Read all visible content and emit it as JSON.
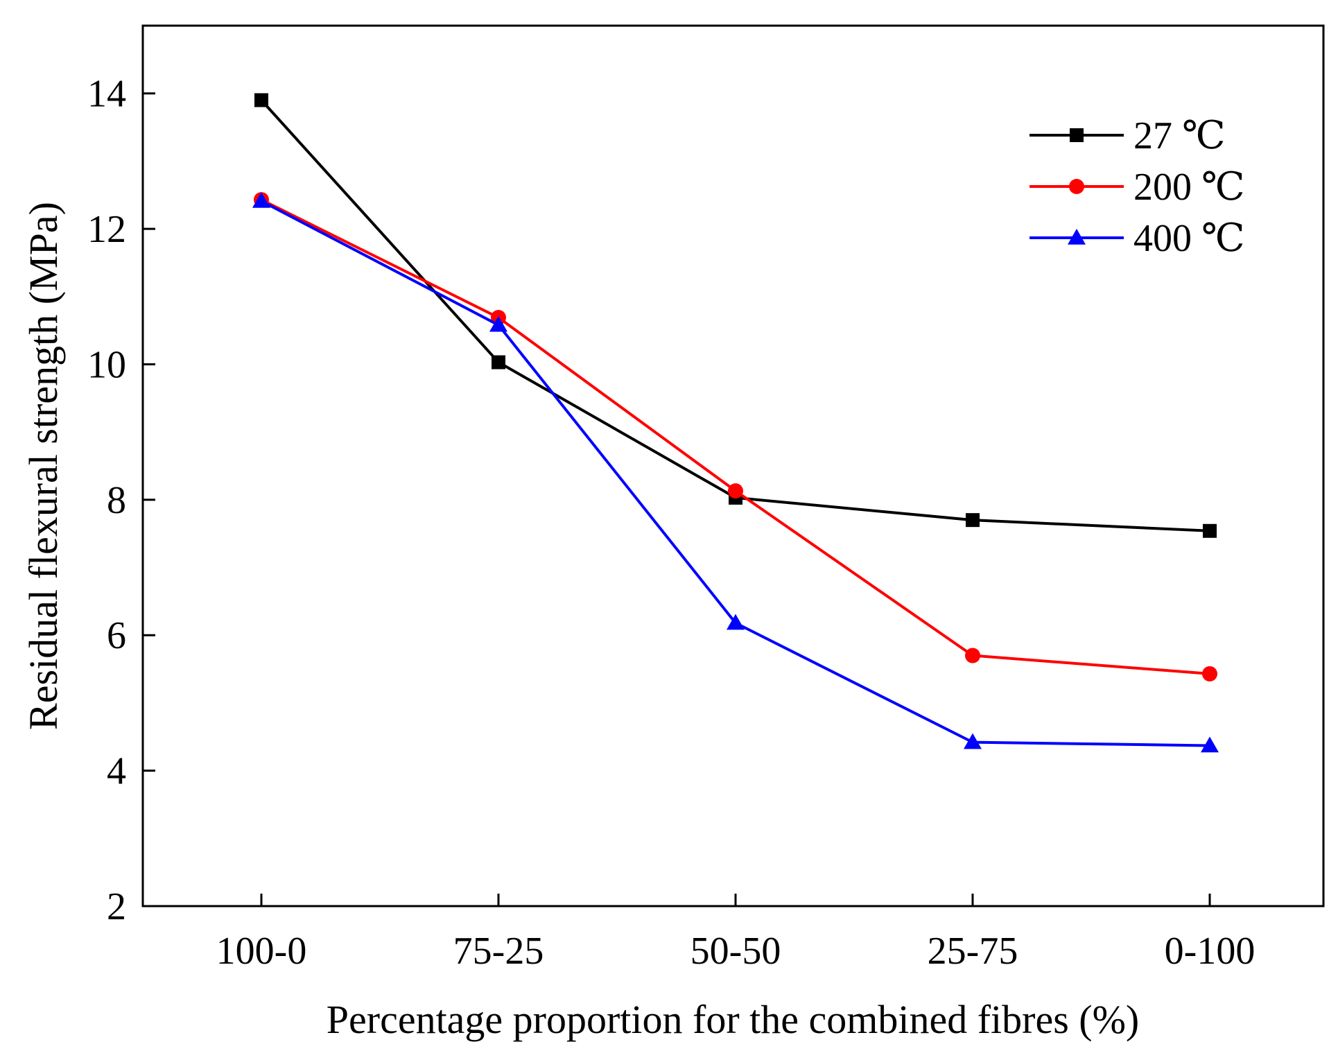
{
  "chart_data": {
    "type": "line",
    "title": "",
    "xlabel": "Percentage proportion for the combined fibres (%)",
    "ylabel": "Residual flexural strength (MPa)",
    "categories": [
      "100-0",
      "75-25",
      "50-50",
      "25-75",
      "0-100"
    ],
    "ylim": [
      2,
      15
    ],
    "yticks": [
      2,
      4,
      6,
      8,
      10,
      12,
      14
    ],
    "grid": false,
    "legend_position": "top-right",
    "series": [
      {
        "name": "27 ℃",
        "color": "#000000",
        "marker": "square",
        "values": [
          13.9,
          10.03,
          8.03,
          7.7,
          7.54
        ]
      },
      {
        "name": "200 ℃",
        "color": "#ff0000",
        "marker": "circle",
        "values": [
          12.43,
          10.69,
          8.13,
          5.7,
          5.43
        ]
      },
      {
        "name": "400 ℃",
        "color": "#0000ff",
        "marker": "triangle",
        "values": [
          12.41,
          10.58,
          6.18,
          4.42,
          4.37
        ]
      }
    ]
  }
}
